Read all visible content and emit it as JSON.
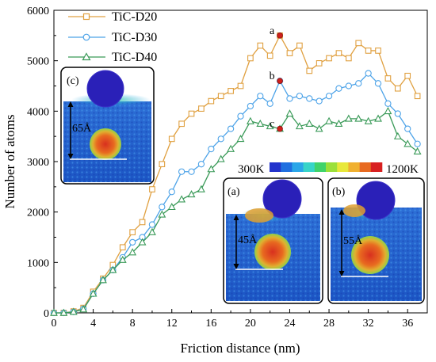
{
  "chart_data": {
    "type": "line",
    "xlabel": "Friction distance (nm)",
    "ylabel": "Number of atoms",
    "xlim": [
      0,
      38
    ],
    "ylim": [
      0,
      6000
    ],
    "x_ticks": [
      "0",
      "4",
      "8",
      "12",
      "16",
      "20",
      "24",
      "28",
      "32",
      "36"
    ],
    "y_ticks": [
      "0",
      "1000",
      "2000",
      "3000",
      "4000",
      "5000",
      "6000"
    ],
    "grid": false,
    "legend_position": "top-left",
    "x": [
      0,
      1,
      2,
      3,
      4,
      5,
      6,
      7,
      8,
      9,
      10,
      11,
      12,
      13,
      14,
      15,
      16,
      17,
      18,
      19,
      20,
      21,
      22,
      23,
      24,
      25,
      26,
      27,
      28,
      29,
      30,
      31,
      32,
      33,
      34,
      35,
      36,
      37
    ],
    "series": [
      {
        "name": "TiC-D20",
        "color": "#e0a040",
        "marker": "square",
        "values": [
          0,
          0,
          30,
          100,
          420,
          680,
          950,
          1300,
          1600,
          1800,
          2450,
          2950,
          3450,
          3750,
          3950,
          4050,
          4200,
          4300,
          4400,
          4500,
          5050,
          5300,
          5100,
          5500,
          5150,
          5300,
          4800,
          4950,
          5050,
          5150,
          5050,
          5350,
          5200,
          5200,
          4650,
          4450,
          4700,
          4300
        ]
      },
      {
        "name": "TiC-D30",
        "color": "#4da3e8",
        "marker": "circle",
        "values": [
          0,
          0,
          20,
          80,
          380,
          650,
          850,
          1100,
          1400,
          1500,
          1750,
          2100,
          2400,
          2800,
          2800,
          2950,
          3250,
          3450,
          3650,
          3900,
          4100,
          4300,
          4150,
          4600,
          4250,
          4300,
          4250,
          4200,
          4300,
          4450,
          4500,
          4550,
          4750,
          4550,
          4150,
          3950,
          3650,
          3350
        ]
      },
      {
        "name": "TiC-D40",
        "color": "#3a9a58",
        "marker": "triangle",
        "values": [
          0,
          0,
          20,
          70,
          380,
          650,
          850,
          1050,
          1200,
          1400,
          1600,
          1950,
          2100,
          2250,
          2350,
          2450,
          2850,
          3050,
          3250,
          3450,
          3800,
          3750,
          3700,
          3650,
          3950,
          3700,
          3750,
          3650,
          3800,
          3750,
          3850,
          3850,
          3800,
          3850,
          4000,
          3500,
          3350,
          3200
        ]
      }
    ],
    "annotations": [
      {
        "label": "a",
        "x": 23,
        "y": 5500
      },
      {
        "label": "b",
        "x": 23,
        "y": 4600
      },
      {
        "label": "c",
        "x": 23,
        "y": 3650
      }
    ]
  },
  "colorbar": {
    "min_label": "300K",
    "max_label": "1200K",
    "colors": [
      "#2233cc",
      "#1f6fe0",
      "#2aa6e8",
      "#37d4c8",
      "#3fd36a",
      "#9be03a",
      "#e8e83a",
      "#f0b030",
      "#e86a20",
      "#d82020"
    ]
  },
  "insets": [
    {
      "label": "(c)",
      "scale": "65Å"
    },
    {
      "label": "(a)",
      "scale": "45Å"
    },
    {
      "label": "(b)",
      "scale": "55Å"
    }
  ]
}
